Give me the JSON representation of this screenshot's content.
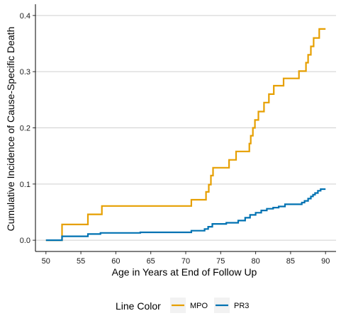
{
  "chart_data": {
    "type": "line",
    "step": true,
    "title": "",
    "xlabel": "Age in Years at End of Follow Up",
    "ylabel": "Cumulative Incidence of  Cause-Specific Death",
    "xlim": [
      48.5,
      91.5
    ],
    "ylim": [
      -0.02,
      0.42
    ],
    "xticks": [
      50,
      55,
      60,
      65,
      70,
      75,
      80,
      85,
      90
    ],
    "yticks": [
      0.0,
      0.1,
      0.2,
      0.3,
      0.4
    ],
    "xtick_labels": [
      "50",
      "55",
      "60",
      "65",
      "70",
      "75",
      "80",
      "85",
      "90"
    ],
    "ytick_labels": [
      "0.0",
      "0.1",
      "0.2",
      "0.3",
      "0.4"
    ],
    "grid": "horizontal major",
    "legend": {
      "title": "Line Color",
      "position": "bottom"
    },
    "series": [
      {
        "name": "MPO",
        "color": "#E69F00",
        "x": [
          50,
          52.3,
          56.0,
          58.0,
          70.8,
          72.9,
          73.3,
          73.6,
          73.9,
          76.2,
          77.2,
          79.1,
          79.3,
          79.6,
          79.9,
          80.4,
          81.2,
          81.9,
          82.6,
          84.0,
          86.2,
          87.2,
          87.5,
          87.9,
          88.3,
          89.1,
          90.0
        ],
        "y": [
          0.0,
          0.028,
          0.046,
          0.061,
          0.072,
          0.086,
          0.099,
          0.115,
          0.129,
          0.143,
          0.158,
          0.172,
          0.186,
          0.2,
          0.214,
          0.229,
          0.245,
          0.26,
          0.275,
          0.288,
          0.301,
          0.316,
          0.33,
          0.345,
          0.36,
          0.376,
          0.376
        ]
      },
      {
        "name": "PR3",
        "color": "#0072B2",
        "x": [
          50,
          52.3,
          56.0,
          57.8,
          63.5,
          70.8,
          72.7,
          73.2,
          73.8,
          75.8,
          77.5,
          78.5,
          79.2,
          80.0,
          80.8,
          81.6,
          82.5,
          83.3,
          84.2,
          86.6,
          87.0,
          87.5,
          87.9,
          88.2,
          88.5,
          88.9,
          89.3,
          90.0
        ],
        "y": [
          0.0,
          0.007,
          0.011,
          0.013,
          0.014,
          0.017,
          0.02,
          0.024,
          0.029,
          0.031,
          0.035,
          0.04,
          0.045,
          0.049,
          0.053,
          0.056,
          0.058,
          0.06,
          0.064,
          0.067,
          0.07,
          0.074,
          0.078,
          0.081,
          0.084,
          0.088,
          0.091,
          0.091
        ]
      }
    ]
  }
}
